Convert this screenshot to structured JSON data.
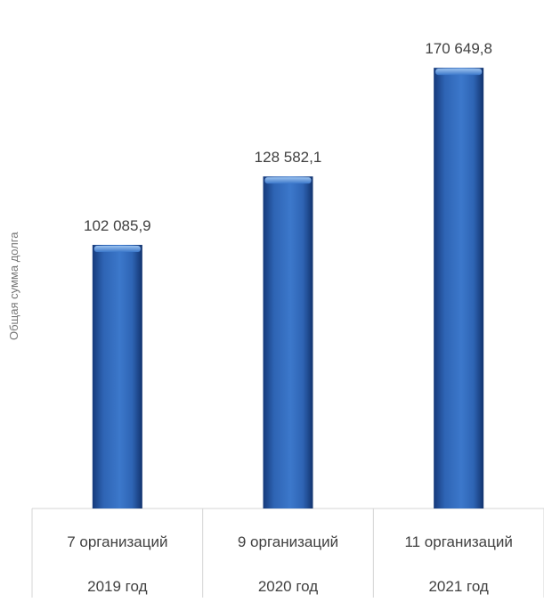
{
  "chart_data": {
    "type": "bar",
    "ylabel": "Общая сумма долга",
    "ylim": [
      0,
      190000
    ],
    "categories": [
      {
        "line1": "7 организаций",
        "line2": "2019 год"
      },
      {
        "line1": "9 организаций",
        "line2": "2020 год"
      },
      {
        "line1": "11 организаций",
        "line2": "2021 год"
      }
    ],
    "values": [
      102085.9,
      128582.1,
      170649.8
    ],
    "value_labels": [
      "102 085,9",
      "128 582,1",
      "170 649,8"
    ],
    "bar_color": "#2E64B4",
    "grid": false,
    "legend": "none"
  }
}
